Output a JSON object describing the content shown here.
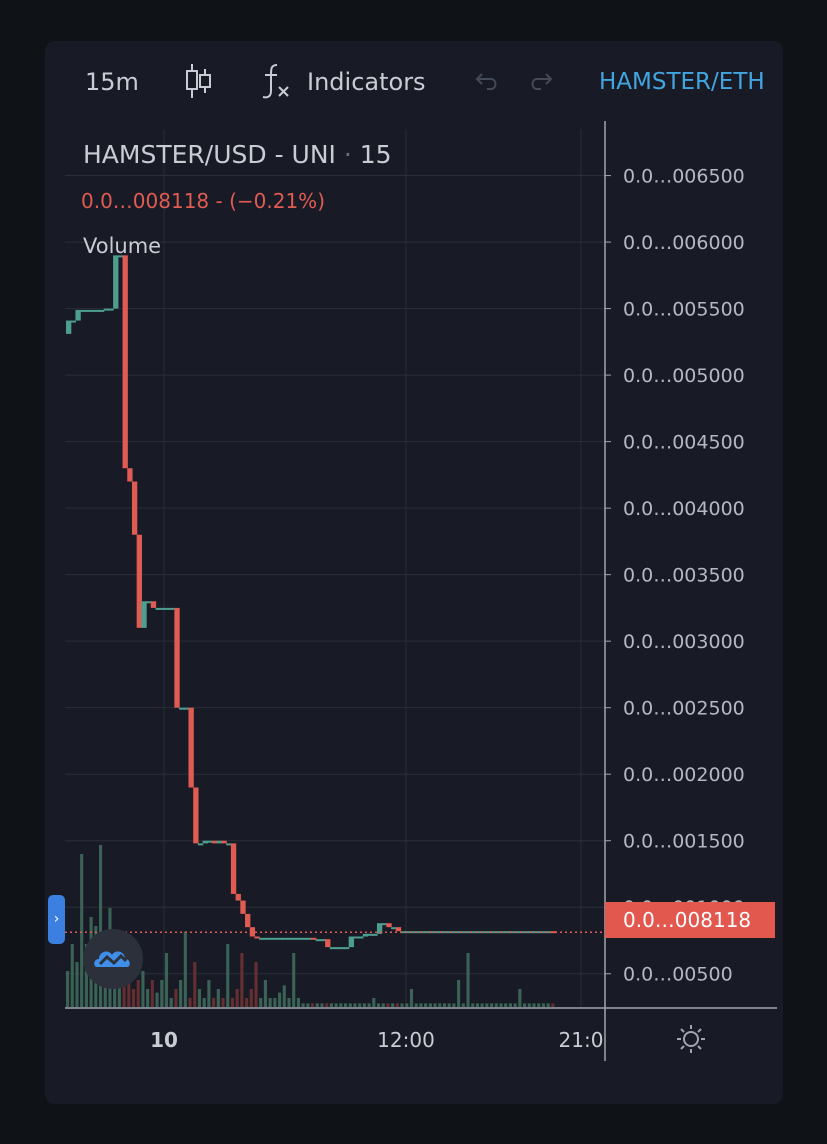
{
  "toolbar": {
    "interval": "15m",
    "indicators_label": "Indicators",
    "symbol": "HAMSTER/ETH",
    "icons": [
      "candles-icon",
      "fx-icon",
      "undo-icon",
      "redo-icon"
    ]
  },
  "legend": {
    "symbol": "HAMSTER/USD - UNI",
    "separator": "·",
    "interval": "15",
    "price": "0.0…008118",
    "change": "(−0.21%)",
    "volume_label": "Volume"
  },
  "current_price": "0.0…008118",
  "colors": {
    "up": "#4e9e8f",
    "down": "#e05b52",
    "accent": "#42a5e0",
    "background": "#181b25"
  },
  "chart_data": {
    "type": "candlestick",
    "title": "HAMSTER/USD - UNI · 15",
    "y_axis_labels": [
      "0.0…006500",
      "0.0…006000",
      "0.0…005500",
      "0.0…005000",
      "0.0…004500",
      "0.0…004000",
      "0.0…003500",
      "0.0…003000",
      "0.0…002500",
      "0.0…002000",
      "0.0…001500",
      "0.0…001000",
      "0.0…00500"
    ],
    "y_axis_values": [
      0.0065,
      0.006,
      0.0055,
      0.005,
      0.0045,
      0.004,
      0.0035,
      0.003,
      0.0025,
      0.002,
      0.0015,
      0.001,
      0.0005
    ],
    "x_axis_labels": [
      "10",
      "12:00",
      "21:0"
    ],
    "ylim": [
      0.00025,
      0.00685
    ],
    "last_price": 0.0008118,
    "price_path": [
      0.00541,
      0.00541,
      0.00549,
      0.00549,
      0.00549,
      0.00549,
      0.00549,
      0.00549,
      0.0055,
      0.0055,
      0.0059,
      0.0059,
      0.0043,
      0.0042,
      0.0038,
      0.0031,
      0.0033,
      0.0033,
      0.00325,
      0.00325,
      0.00325,
      0.00325,
      0.00325,
      0.0025,
      0.0025,
      0.0025,
      0.0019,
      0.00148,
      0.00148,
      0.0015,
      0.0015,
      0.00148,
      0.0015,
      0.00148,
      0.00148,
      0.0011,
      0.00105,
      0.00095,
      0.00085,
      0.00078,
      0.00077,
      0.00077,
      0.00077,
      0.00077,
      0.00077,
      0.00077,
      0.00077,
      0.00077,
      0.00077,
      0.00077,
      0.00077,
      0.00077,
      0.00076,
      0.00076,
      0.00076,
      0.0007,
      0.0007,
      0.0007,
      0.0007,
      0.0007,
      0.00078,
      0.00078,
      0.00078,
      0.0008,
      0.0008,
      0.0008,
      0.00088,
      0.00088,
      0.00085,
      0.00085,
      0.00082,
      0.00082,
      0.00082,
      0.00082,
      0.00082,
      0.00082,
      0.00082,
      0.00082,
      0.00082,
      0.00082,
      0.00082,
      0.00082,
      0.00082,
      0.00082,
      0.00082,
      0.00082,
      0.00082,
      0.00082,
      0.00082,
      0.00082,
      0.00082,
      0.00082,
      0.00082,
      0.00082,
      0.00082,
      0.00082,
      0.00082,
      0.00082,
      0.00082,
      0.00082,
      0.00082,
      0.00082,
      0.00082,
      0.00081
    ],
    "volume_relative": [
      0.2,
      0.35,
      0.25,
      0.85,
      0.35,
      0.5,
      0.45,
      0.9,
      0.4,
      0.55,
      0.3,
      0.35,
      0.25,
      0.2,
      0.1,
      0.15,
      0.2,
      0.1,
      0.15,
      0.08,
      0.15,
      0.3,
      0.05,
      0.1,
      0.15,
      0.42,
      0.05,
      0.25,
      0.1,
      0.05,
      0.15,
      0.05,
      0.1,
      0.05,
      0.35,
      0.05,
      0.1,
      0.3,
      0.05,
      0.1,
      0.25,
      0.05,
      0.15,
      0.05,
      0.05,
      0.08,
      0.12,
      0.05,
      0.3,
      0.05,
      0.02,
      0.02,
      0.02,
      0.02,
      0.02,
      0.02,
      0.02,
      0.02,
      0.02,
      0.02,
      0.02,
      0.02,
      0.02,
      0.02,
      0.02,
      0.05,
      0.02,
      0.02,
      0.02,
      0.02,
      0.02,
      0.02,
      0.02,
      0.1,
      0.02,
      0.02,
      0.02,
      0.02,
      0.02,
      0.02,
      0.02,
      0.02,
      0.02,
      0.15,
      0.02,
      0.3,
      0.02,
      0.02,
      0.02,
      0.02,
      0.02,
      0.02,
      0.02,
      0.02,
      0.02,
      0.02,
      0.1,
      0.02,
      0.02,
      0.02,
      0.02,
      0.02,
      0.02,
      0.02
    ],
    "grid": true
  }
}
